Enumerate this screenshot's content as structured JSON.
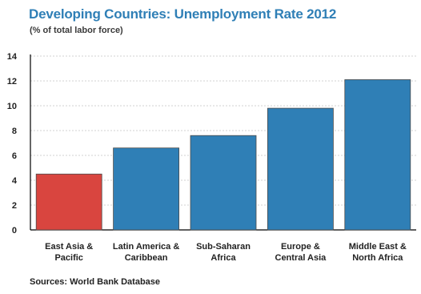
{
  "chart_data": {
    "type": "bar",
    "title": "Developing Countries: Unemployment Rate 2012",
    "subtitle": "(% of total labor force)",
    "source": "Sources: World Bank Database",
    "categories": [
      [
        "East Asia &",
        "Pacific"
      ],
      [
        "Latin America &",
        "Caribbean"
      ],
      [
        "Sub-Saharan",
        "Africa"
      ],
      [
        "Europe &",
        "Central Asia"
      ],
      [
        "Middle East &",
        "North Africa"
      ]
    ],
    "values": [
      4.5,
      6.6,
      7.6,
      9.8,
      12.1
    ],
    "colors": [
      "#d9453f",
      "#2f7fb6",
      "#2f7fb6",
      "#2f7fb6",
      "#2f7fb6"
    ],
    "ylim": [
      0,
      14
    ],
    "yticks": [
      0,
      2,
      4,
      6,
      8,
      10,
      12,
      14
    ],
    "grid": true,
    "legend": "none"
  }
}
